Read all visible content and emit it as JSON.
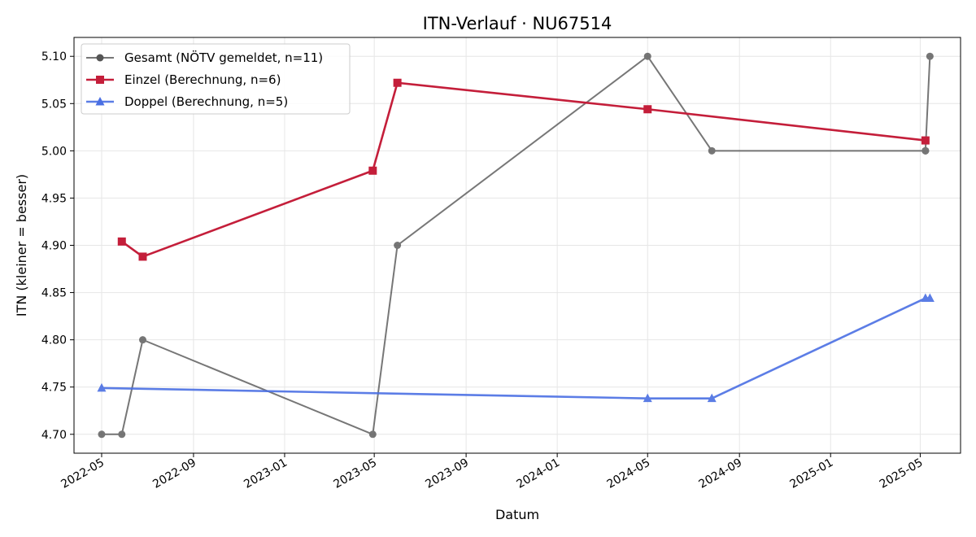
{
  "chart_data": {
    "type": "line",
    "title": "ITN-Verlauf · NU67514",
    "xlabel": "Datum",
    "ylabel": "ITN  (kleiner = besser)",
    "x_ticks": [
      "2022-05",
      "2022-09",
      "2023-01",
      "2023-05",
      "2023-09",
      "2024-01",
      "2024-05",
      "2024-09",
      "2025-01",
      "2025-05"
    ],
    "y_ticks": [
      "4.70",
      "4.75",
      "4.80",
      "4.85",
      "4.90",
      "4.95",
      "5.00",
      "5.05",
      "5.10"
    ],
    "xlim": [
      "2022-03-25",
      "2025-06-24"
    ],
    "ylim": [
      4.68,
      5.12
    ],
    "grid": true,
    "legend_position": "top-left",
    "series": [
      {
        "name": "Gesamt (NÖTV gemeldet, n=11)",
        "color": "#555555",
        "marker": "circle",
        "points": [
          {
            "x": "2022-05-01",
            "y": 4.7
          },
          {
            "x": "2022-05-28",
            "y": 4.7
          },
          {
            "x": "2022-06-25",
            "y": 4.8
          },
          {
            "x": "2023-04-29",
            "y": 4.7
          },
          {
            "x": "2023-06-01",
            "y": 4.9
          },
          {
            "x": "2024-05-01",
            "y": 5.1
          },
          {
            "x": "2024-07-26",
            "y": 5.0
          },
          {
            "x": "2025-05-08",
            "y": 5.0
          },
          {
            "x": "2025-05-08",
            "y": 5.0
          },
          {
            "x": "2025-05-14",
            "y": 5.1
          },
          {
            "x": "2025-05-08",
            "y": 5.0
          }
        ]
      },
      {
        "name": "Einzel (Berechnung, n=6)",
        "color": "#c41e3a",
        "marker": "square",
        "points": [
          {
            "x": "2022-05-28",
            "y": 4.904
          },
          {
            "x": "2022-06-25",
            "y": 4.888
          },
          {
            "x": "2023-04-29",
            "y": 4.979
          },
          {
            "x": "2023-06-01",
            "y": 5.072
          },
          {
            "x": "2024-05-01",
            "y": 5.044
          },
          {
            "x": "2025-05-08",
            "y": 5.011
          }
        ]
      },
      {
        "name": "Doppel (Berechnung, n=5)",
        "color": "#4a6fe3",
        "marker": "triangle",
        "points": [
          {
            "x": "2022-05-01",
            "y": 4.749
          },
          {
            "x": "2024-05-01",
            "y": 4.738
          },
          {
            "x": "2024-07-26",
            "y": 4.738
          },
          {
            "x": "2025-05-08",
            "y": 4.844
          },
          {
            "x": "2025-05-14",
            "y": 4.844
          }
        ]
      }
    ]
  }
}
